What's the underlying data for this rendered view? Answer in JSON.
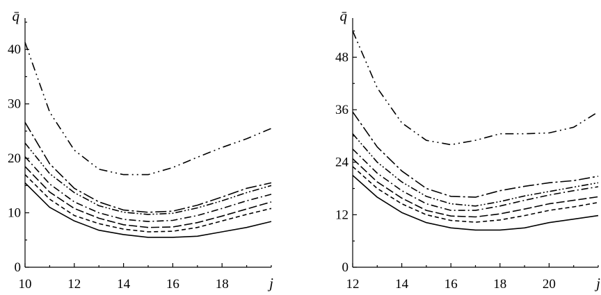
{
  "chart_data": [
    {
      "type": "line",
      "xlabel": "j",
      "ylabel": "q̄",
      "xlim": [
        10,
        20
      ],
      "ylim": [
        0,
        45
      ],
      "x_ticks": [
        10,
        12,
        14,
        16,
        18
      ],
      "y_ticks": [
        0,
        10,
        20,
        30,
        40
      ],
      "x": [
        10,
        11,
        12,
        13,
        14,
        15,
        16,
        17,
        18,
        19,
        20
      ],
      "series": [
        {
          "style": "solid",
          "values": [
            15.5,
            11.0,
            8.5,
            6.8,
            6.0,
            5.5,
            5.5,
            5.7,
            6.5,
            7.3,
            8.4
          ]
        },
        {
          "style": "dashed",
          "values": [
            17.0,
            12.5,
            9.5,
            8.0,
            7.0,
            6.5,
            6.6,
            7.3,
            8.5,
            9.7,
            10.8
          ]
        },
        {
          "style": "long-dash",
          "values": [
            18.5,
            13.8,
            10.8,
            9.0,
            7.8,
            7.3,
            7.4,
            8.2,
            9.4,
            10.7,
            12.0
          ]
        },
        {
          "style": "dash-dot",
          "values": [
            20.3,
            15.3,
            12.0,
            10.0,
            8.8,
            8.4,
            8.6,
            9.5,
            10.8,
            12.2,
            13.4
          ]
        },
        {
          "style": "dash-dot-dot",
          "values": [
            22.8,
            17.2,
            13.7,
            11.3,
            10.1,
            9.7,
            9.9,
            10.9,
            12.2,
            13.7,
            15.0
          ]
        },
        {
          "style": "long-dash-dot",
          "values": [
            26.6,
            19.0,
            14.5,
            12.0,
            10.5,
            10.1,
            10.3,
            11.4,
            12.9,
            14.5,
            15.5
          ]
        },
        {
          "style": "dash-dot-dot-sparse",
          "values": [
            41.3,
            28.5,
            21.5,
            18.0,
            17.0,
            17.0,
            18.3,
            20.2,
            22.0,
            23.6,
            25.5
          ]
        }
      ]
    },
    {
      "type": "line",
      "xlabel": "j",
      "ylabel": "q̄",
      "xlim": [
        12,
        22
      ],
      "ylim": [
        0,
        56
      ],
      "x_ticks": [
        12,
        14,
        16,
        18,
        20
      ],
      "y_ticks": [
        0,
        12,
        24,
        36,
        48
      ],
      "x": [
        12,
        13,
        14,
        15,
        16,
        17,
        18,
        19,
        20,
        21,
        22
      ],
      "series": [
        {
          "style": "solid",
          "values": [
            21.0,
            16.0,
            12.5,
            10.2,
            9.0,
            8.5,
            8.5,
            9.0,
            10.2,
            11.0,
            11.8
          ]
        },
        {
          "style": "dashed",
          "values": [
            23.0,
            18.0,
            14.5,
            12.0,
            10.7,
            10.3,
            10.8,
            11.8,
            13.0,
            13.8,
            14.8
          ]
        },
        {
          "style": "long-dash",
          "values": [
            24.8,
            19.5,
            15.8,
            13.0,
            11.7,
            11.5,
            12.2,
            13.3,
            14.5,
            15.3,
            16.1
          ]
        },
        {
          "style": "dash-dot",
          "values": [
            27.0,
            21.5,
            17.5,
            14.5,
            13.0,
            13.0,
            14.0,
            15.3,
            16.5,
            17.5,
            18.4
          ]
        },
        {
          "style": "dash-dot-dot",
          "values": [
            30.5,
            24.0,
            19.5,
            16.2,
            14.5,
            14.0,
            15.0,
            16.3,
            17.3,
            18.3,
            19.3
          ]
        },
        {
          "style": "long-dash-dot",
          "values": [
            35.5,
            27.5,
            22.0,
            18.0,
            16.2,
            16.0,
            17.5,
            18.5,
            19.3,
            19.8,
            20.8
          ]
        },
        {
          "style": "dash-dot-dot-sparse",
          "values": [
            54.0,
            41.0,
            33.0,
            29.0,
            28.0,
            29.0,
            30.5,
            30.5,
            30.7,
            32.0,
            35.5
          ]
        }
      ]
    }
  ]
}
